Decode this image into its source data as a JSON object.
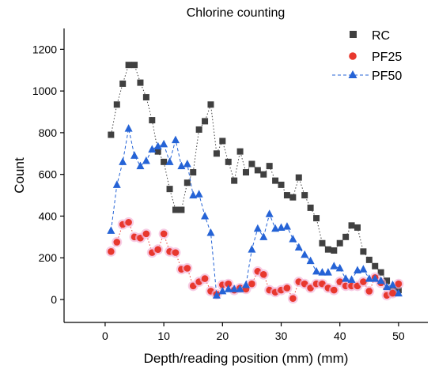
{
  "chart_data": {
    "type": "scatter",
    "title": "Chlorine counting",
    "xlabel": "Depth/reading position (mm) (mm)",
    "ylabel": "Count",
    "xlim": [
      -7,
      55
    ],
    "ylim": [
      -110,
      1300
    ],
    "x_ticks": [
      0,
      10,
      20,
      30,
      40,
      50
    ],
    "y_ticks": [
      0,
      200,
      400,
      600,
      800,
      1000,
      1200
    ],
    "grid": false,
    "legend_position": "top-right",
    "series": [
      {
        "name": "RC",
        "marker": "square",
        "color": "#404040",
        "line": "dotted",
        "x": [
          1,
          2,
          3,
          4,
          5,
          6,
          7,
          8,
          9,
          10,
          11,
          12,
          13,
          14,
          15,
          16,
          17,
          18,
          19,
          20,
          21,
          22,
          23,
          24,
          25,
          26,
          27,
          28,
          29,
          30,
          31,
          32,
          33,
          34,
          35,
          36,
          37,
          38,
          39,
          40,
          41,
          42,
          43,
          44,
          45,
          46,
          47,
          48,
          49,
          50
        ],
        "y": [
          790,
          935,
          1035,
          1125,
          1125,
          1040,
          970,
          860,
          710,
          660,
          530,
          430,
          430,
          560,
          610,
          815,
          855,
          935,
          700,
          760,
          660,
          570,
          710,
          610,
          650,
          620,
          600,
          640,
          570,
          550,
          500,
          490,
          585,
          500,
          440,
          390,
          270,
          240,
          235,
          270,
          300,
          355,
          345,
          230,
          190,
          160,
          130,
          90,
          40,
          45
        ]
      },
      {
        "name": "PF25",
        "marker": "circle",
        "color": "#e8382e",
        "line": "dotted",
        "x": [
          1,
          2,
          3,
          4,
          5,
          6,
          7,
          8,
          9,
          10,
          11,
          12,
          13,
          14,
          15,
          16,
          17,
          18,
          19,
          20,
          21,
          22,
          23,
          24,
          25,
          26,
          27,
          28,
          29,
          30,
          31,
          32,
          33,
          34,
          35,
          36,
          37,
          38,
          39,
          40,
          41,
          42,
          43,
          44,
          45,
          46,
          47,
          48,
          49,
          50
        ],
        "y": [
          230,
          275,
          360,
          370,
          300,
          295,
          315,
          225,
          240,
          315,
          230,
          225,
          145,
          150,
          65,
          85,
          100,
          40,
          25,
          70,
          75,
          45,
          55,
          50,
          75,
          135,
          120,
          45,
          35,
          45,
          55,
          5,
          85,
          75,
          55,
          75,
          75,
          55,
          45,
          85,
          65,
          65,
          65,
          85,
          40,
          105,
          80,
          20,
          30,
          75
        ]
      },
      {
        "name": "PF50",
        "marker": "triangle",
        "color": "#2563d6",
        "line": "dashed",
        "x": [
          1,
          2,
          3,
          4,
          5,
          6,
          7,
          8,
          9,
          10,
          11,
          12,
          13,
          14,
          15,
          16,
          17,
          18,
          19,
          20,
          21,
          22,
          23,
          24,
          25,
          26,
          27,
          28,
          29,
          30,
          31,
          32,
          33,
          34,
          35,
          36,
          37,
          38,
          39,
          40,
          41,
          42,
          43,
          44,
          45,
          46,
          47,
          48,
          49,
          50
        ],
        "y": [
          330,
          550,
          660,
          820,
          690,
          640,
          665,
          720,
          735,
          745,
          660,
          765,
          640,
          650,
          500,
          505,
          400,
          320,
          20,
          40,
          50,
          50,
          50,
          70,
          240,
          340,
          300,
          410,
          340,
          345,
          350,
          290,
          250,
          215,
          185,
          135,
          130,
          130,
          160,
          150,
          100,
          95,
          140,
          145,
          100,
          100,
          90,
          60,
          70,
          30
        ]
      }
    ]
  }
}
